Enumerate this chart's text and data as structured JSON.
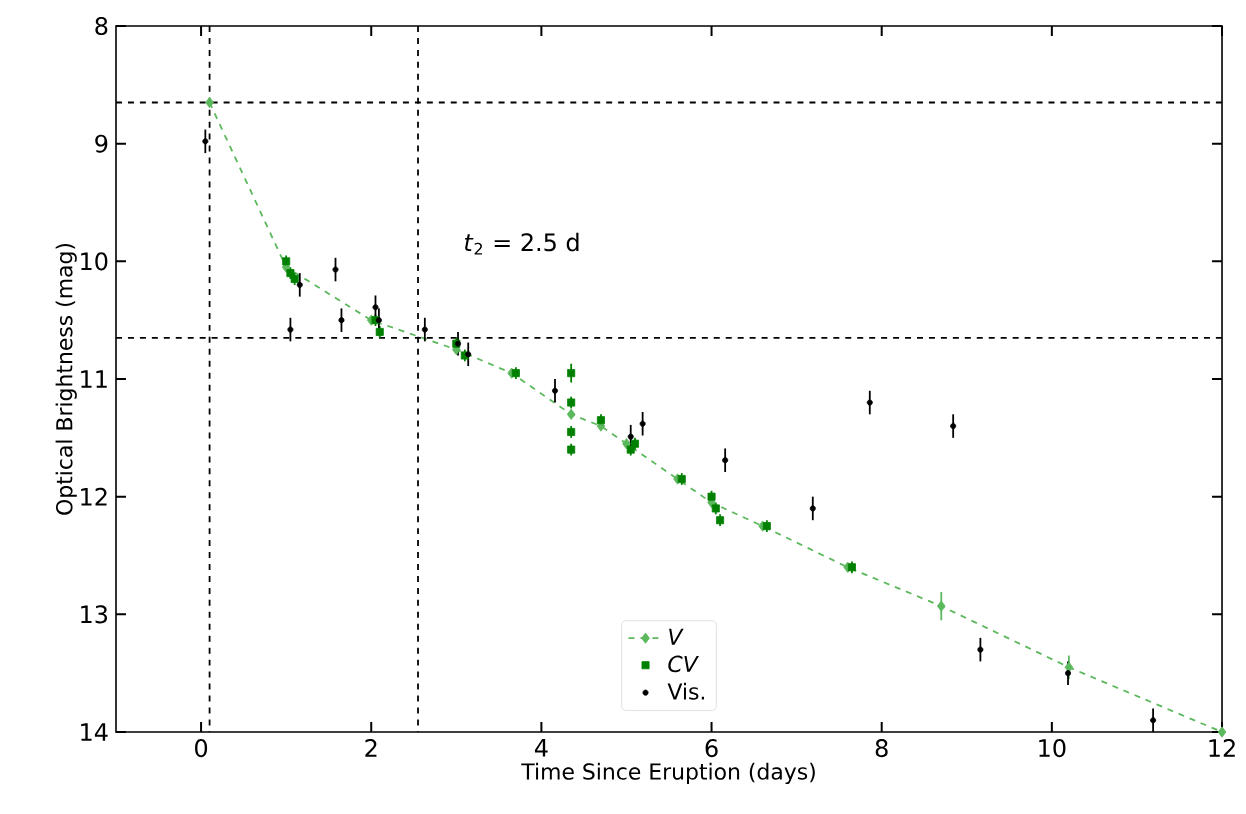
{
  "chart_data": {
    "type": "line",
    "xlabel": "Time Since Eruption (days)",
    "ylabel": "Optical Brightness (mag)",
    "xlim": [
      -1,
      12
    ],
    "xticks": [
      0,
      2,
      4,
      6,
      8,
      10,
      12
    ],
    "ylim": [
      14,
      8
    ],
    "yticks": [
      8,
      9,
      10,
      11,
      12,
      13,
      14
    ],
    "grid": false,
    "legend": "bottom",
    "annotations": [
      "*t*$_{2}$ = 2.5 d"
    ],
    "ref_lines": [
      {
        "axis": "y",
        "value": 8.65,
        "color": "#000000",
        "line_style": "dashed"
      },
      {
        "axis": "y",
        "value": 10.65,
        "color": "#000000",
        "line_style": "dashed"
      },
      {
        "axis": "x",
        "value": 0.1,
        "color": "#000000",
        "line_style": "dashed"
      },
      {
        "axis": "x",
        "value": 2.55,
        "color": "#000000",
        "line_style": "dashed"
      }
    ],
    "series": [
      {
        "name": "*V*",
        "color": "#5cb85c",
        "line_style": "dashed",
        "marker": "diamond",
        "x": [
          0.1,
          1.0,
          2.0,
          3.0,
          3.65,
          4.35,
          4.7,
          5.0,
          5.6,
          6.0,
          6.6,
          7.6,
          8.7,
          10.2,
          12.0
        ],
        "values": [
          8.65,
          10.05,
          10.5,
          10.75,
          10.95,
          11.3,
          11.4,
          11.55,
          11.85,
          12.05,
          12.25,
          12.6,
          12.93,
          13.45,
          14.0
        ],
        "errors": [
          null,
          null,
          null,
          null,
          null,
          null,
          null,
          null,
          null,
          null,
          null,
          null,
          0.12,
          0.1,
          null
        ]
      },
      {
        "name": "*CV*",
        "type": "scatter",
        "color": "#008000",
        "marker": "square",
        "x": [
          1.0,
          1.05,
          1.1,
          2.05,
          2.1,
          3.0,
          3.1,
          3.7,
          4.35,
          4.35,
          4.35,
          4.35,
          4.7,
          5.1,
          5.05,
          5.65,
          6.0,
          6.05,
          6.1,
          6.65,
          7.65
        ],
        "values": [
          10.0,
          10.1,
          10.15,
          10.5,
          10.6,
          10.7,
          10.8,
          10.95,
          10.95,
          11.2,
          11.45,
          11.6,
          11.35,
          11.55,
          11.6,
          11.85,
          12.0,
          12.1,
          12.2,
          12.25,
          12.6
        ],
        "errors": [
          0.05,
          0.05,
          0.05,
          0.05,
          0.05,
          0.05,
          0.05,
          0.05,
          0.08,
          0.05,
          0.05,
          0.05,
          0.05,
          0.05,
          0.05,
          0.05,
          0.05,
          0.05,
          0.05,
          0.05,
          0.05
        ]
      },
      {
        "name": "Vis.",
        "type": "scatter",
        "color": "#000000",
        "marker": "circle",
        "x": [
          0.05,
          1.05,
          1.16,
          1.58,
          1.65,
          2.05,
          2.09,
          2.63,
          3.02,
          3.14,
          4.16,
          5.05,
          5.19,
          6.16,
          7.19,
          7.86,
          8.84,
          9.16,
          10.19,
          11.19
        ],
        "values": [
          8.98,
          10.58,
          10.2,
          10.07,
          10.5,
          10.39,
          10.5,
          10.58,
          10.7,
          10.79,
          11.1,
          11.49,
          11.38,
          11.69,
          12.1,
          11.2,
          11.4,
          13.3,
          13.5,
          13.9
        ],
        "errors": [
          0.1,
          0.1,
          0.1,
          0.1,
          0.1,
          0.1,
          0.1,
          0.1,
          0.1,
          0.1,
          0.1,
          0.1,
          0.1,
          0.1,
          0.1,
          0.1,
          0.1,
          0.1,
          0.1,
          0.1
        ]
      }
    ]
  }
}
